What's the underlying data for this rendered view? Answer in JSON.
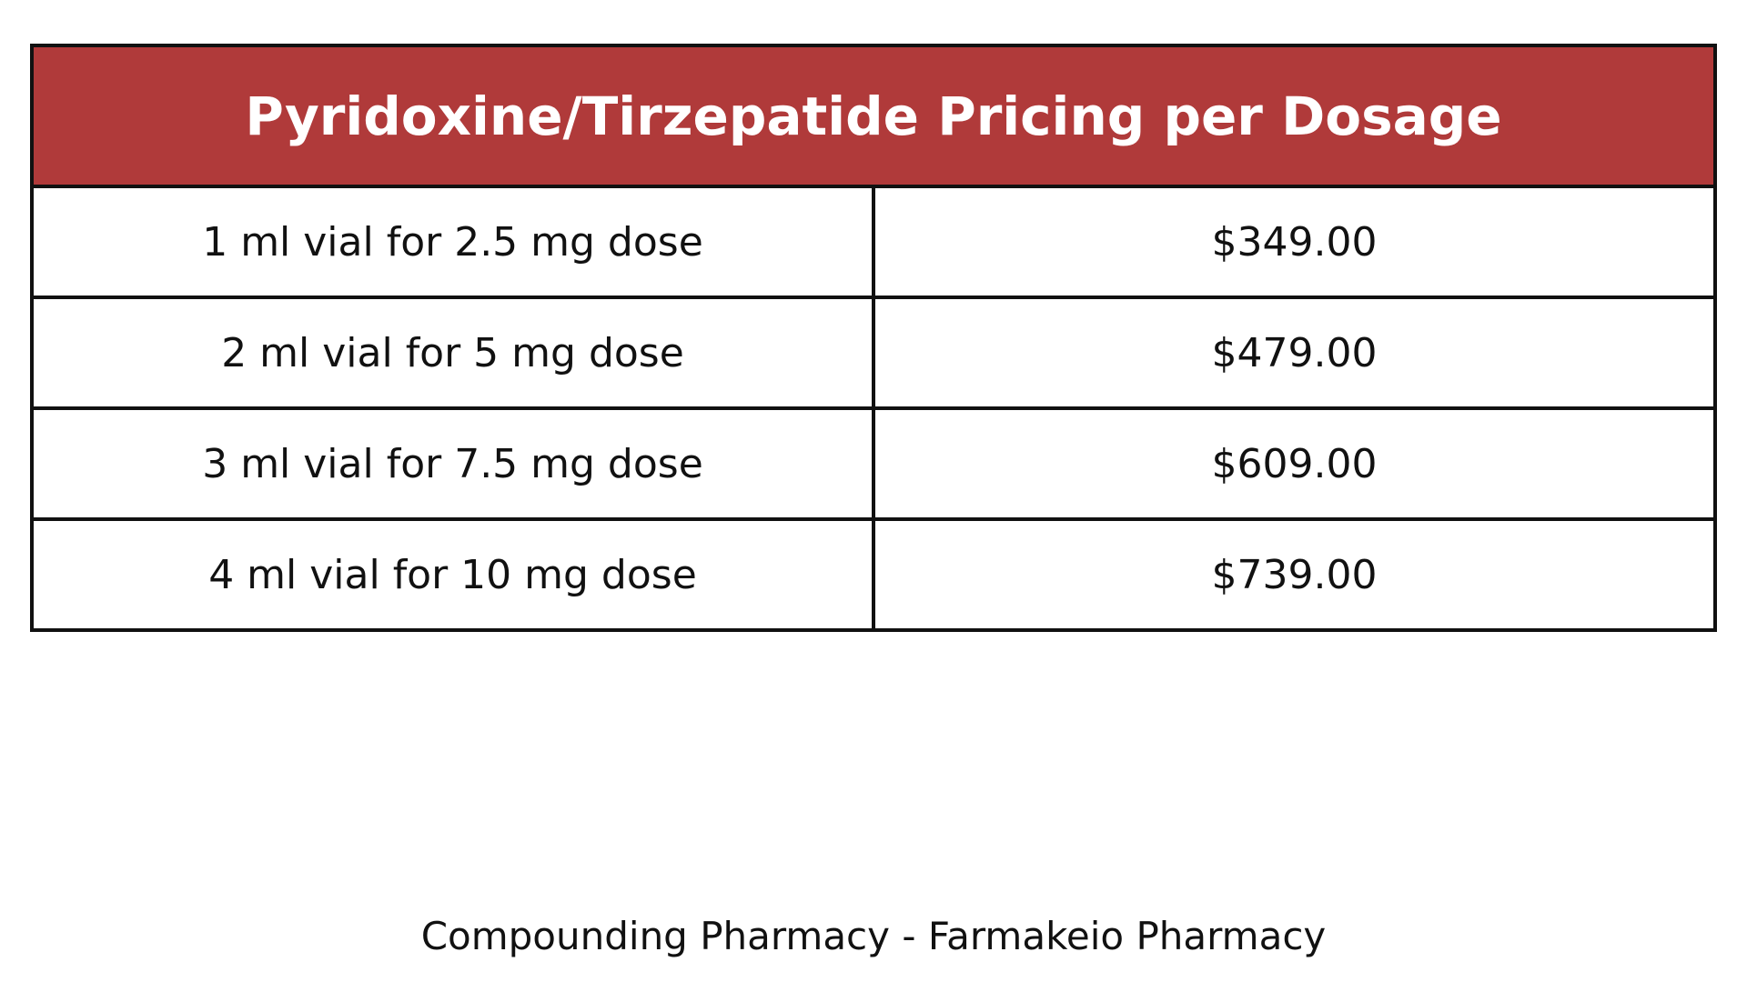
{
  "table": {
    "title": "Pyridoxine/Tirzepatide Pricing per Dosage",
    "rows": [
      [
        "1 ml vial for 2.5 mg dose",
        "$349.00"
      ],
      [
        "2 ml vial for 5 mg dose",
        "$479.00"
      ],
      [
        "3 ml vial for 7.5 mg dose",
        "$609.00"
      ],
      [
        "4 ml vial for 10 mg dose",
        "$739.00"
      ]
    ]
  },
  "footer": "Compounding Pharmacy - Farmakeio Pharmacy"
}
